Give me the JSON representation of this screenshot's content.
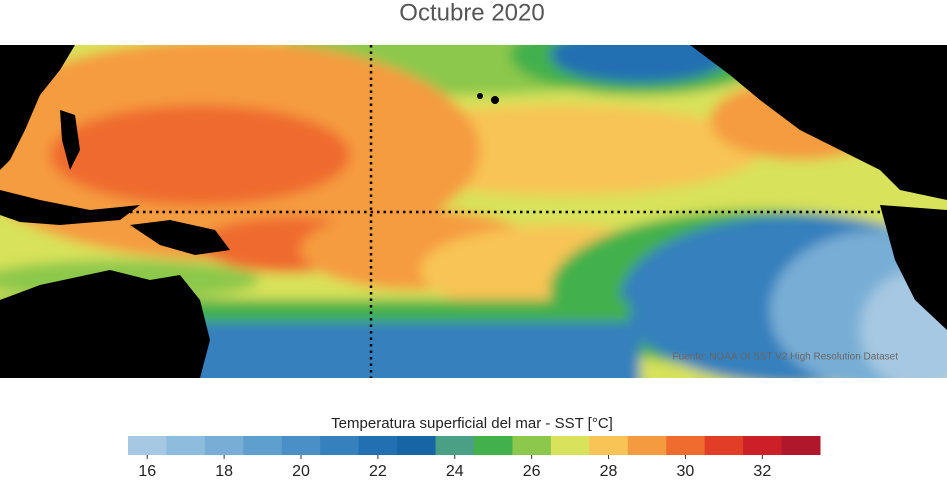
{
  "title": "Octubre 2020",
  "source": "Fuente: NOAA OI SST V2 High Resolution Dataset",
  "colorbar": {
    "label": "Temperatura superficial del mar - SST  [°C]",
    "colors": [
      "#a6c8e2",
      "#8ebcdc",
      "#78aed5",
      "#5e9fce",
      "#4a90c6",
      "#3580bd",
      "#2270b2",
      "#1765a4",
      "#49a085",
      "#43b14b",
      "#8cc84b",
      "#d8e25a",
      "#f8c455",
      "#f59b3f",
      "#ef6b2e",
      "#e23d26",
      "#cc1f27",
      "#b0172a"
    ],
    "lim": [
      15.5,
      33.5
    ],
    "ticks": [
      16,
      18,
      20,
      22,
      24,
      26,
      28,
      30,
      32
    ]
  }
}
